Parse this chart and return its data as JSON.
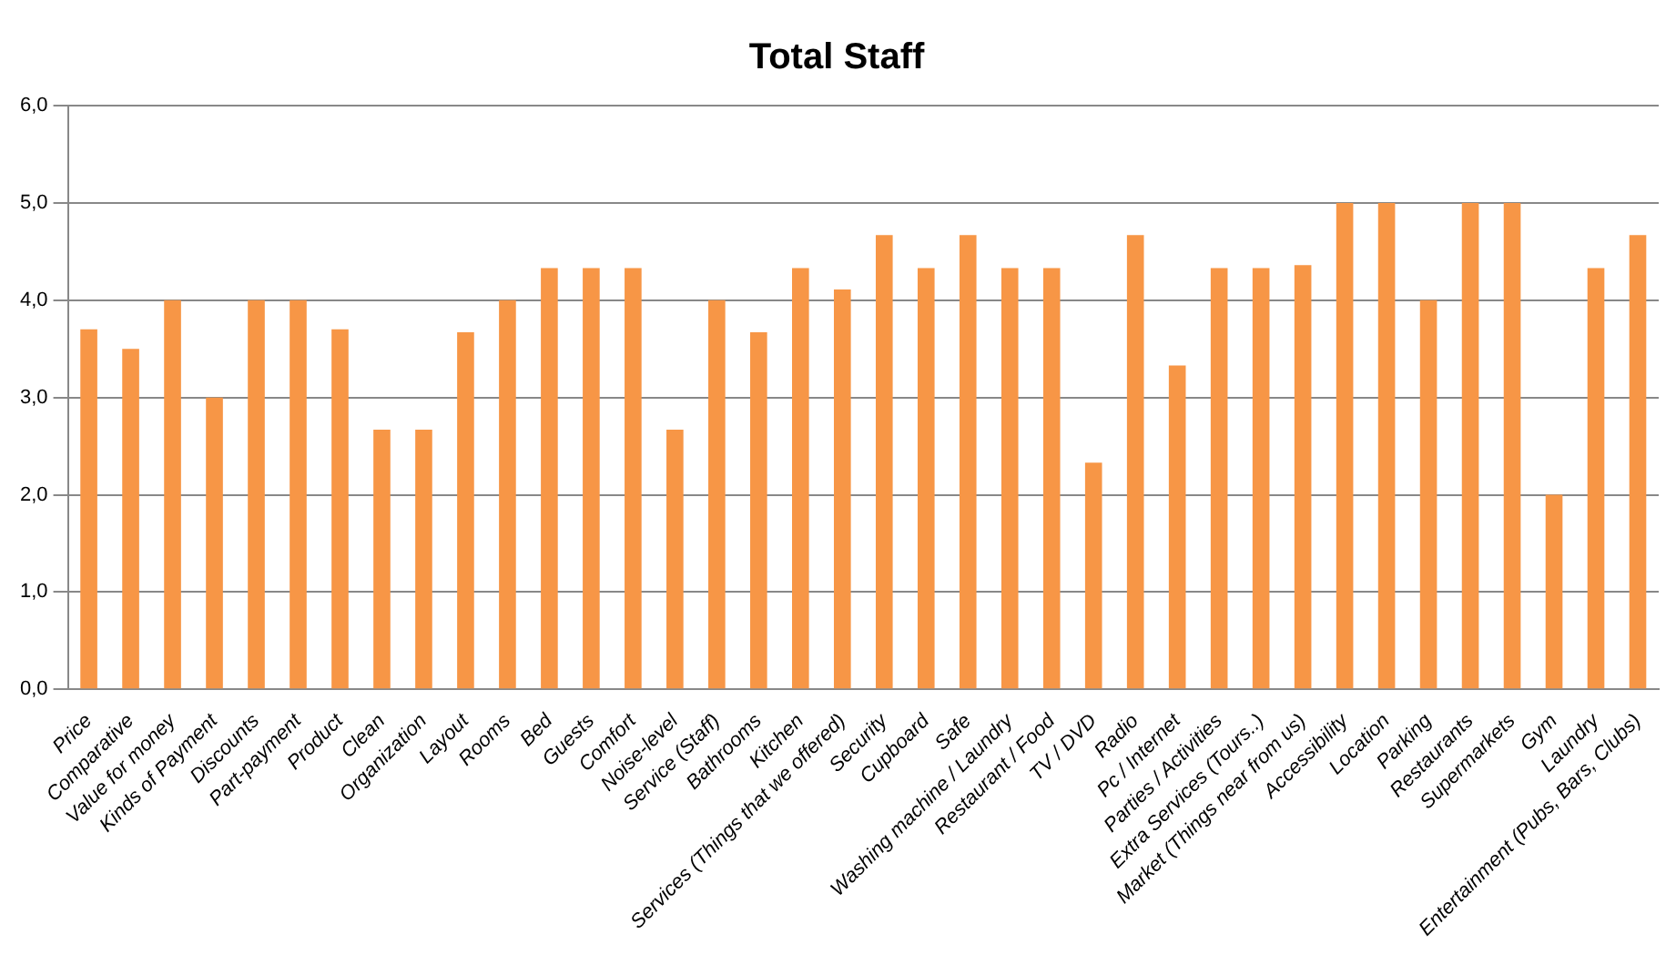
{
  "chart_data": {
    "type": "bar",
    "title": "Total Staff",
    "categories": [
      "Price",
      "Comparative",
      "Value for money",
      "Kinds of Payment",
      "Discounts",
      "Part-payment",
      "Product",
      "Clean",
      "Organization",
      "Layout",
      "Rooms",
      "Bed",
      "Guests",
      "Comfort",
      "Noise-level",
      "Service (Staff)",
      "Bathrooms",
      "Kitchen",
      "Services (Things that we offered)",
      "Security",
      "Cupboard",
      "Safe",
      "Washing machine / Laundry",
      "Restaurant / Food",
      "TV / DVD",
      "Radio",
      "Pc / Internet",
      "Parties / Activities",
      "Extra Services (Tours..)",
      "Market (Things near from us)",
      "Accessibility",
      "Location",
      "Parking",
      "Restaurants",
      "Supermarkets",
      "Gym",
      "Laundry",
      "Entertainment (Pubs, Bars, Clubs)"
    ],
    "values": [
      3.7,
      3.5,
      4.0,
      3.0,
      4.0,
      4.0,
      3.7,
      2.67,
      2.67,
      3.67,
      4.0,
      4.33,
      4.33,
      4.33,
      2.67,
      4.0,
      3.67,
      4.33,
      4.11,
      4.67,
      4.33,
      4.67,
      4.33,
      4.33,
      2.33,
      4.67,
      3.33,
      4.33,
      4.33,
      4.36,
      5.0,
      5.0,
      4.0,
      5.0,
      5.0,
      2.0,
      4.33,
      4.67
    ],
    "color": "#f79646",
    "ylim": [
      0,
      6
    ],
    "yticks": [
      {
        "value": 0,
        "label": "0,0"
      },
      {
        "value": 1,
        "label": "1,0"
      },
      {
        "value": 2,
        "label": "2,0"
      },
      {
        "value": 3,
        "label": "3,0"
      },
      {
        "value": 4,
        "label": "4,0"
      },
      {
        "value": 5,
        "label": "5,0"
      },
      {
        "value": 6,
        "label": "6,0"
      }
    ],
    "grid": "y",
    "legend": false
  }
}
